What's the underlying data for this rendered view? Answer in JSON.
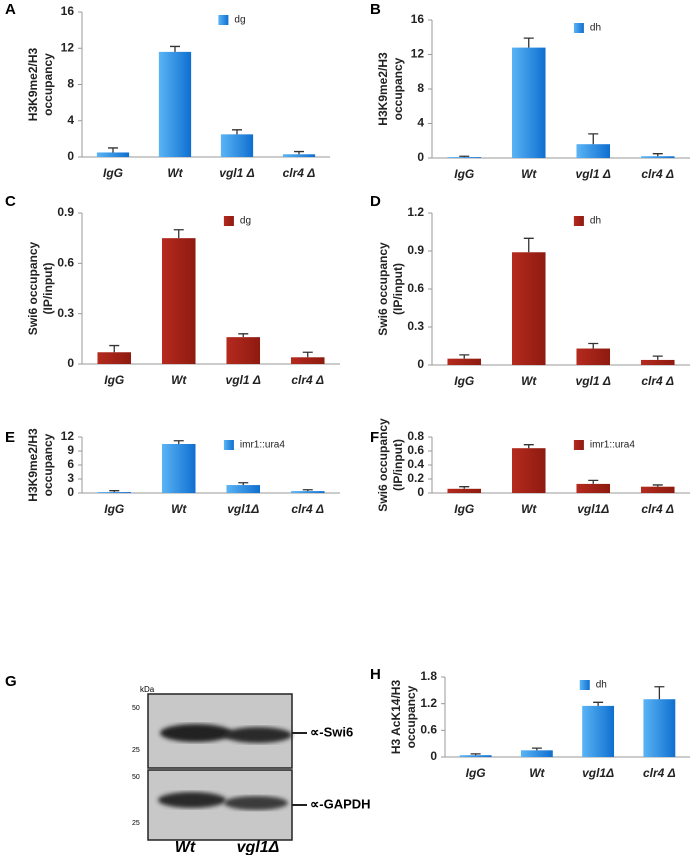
{
  "chart_data": [
    {
      "type": "bar",
      "label": "A",
      "ylabel": [
        "H3K9me2/H3",
        "occupancy"
      ],
      "categories": [
        "IgG",
        "Wt",
        "vgl1 Δ",
        "clr4 Δ"
      ],
      "values": [
        0.5,
        11.6,
        2.5,
        0.3
      ],
      "errors": [
        0.5,
        0.6,
        0.5,
        0.3
      ],
      "legend": "dg",
      "color": "#1e88e5",
      "ylim": [
        0,
        16
      ],
      "yticks": [
        0,
        4,
        8,
        12,
        16
      ]
    },
    {
      "type": "bar",
      "label": "B",
      "ylabel": [
        "H3K9me2/H3",
        "occupancy"
      ],
      "categories": [
        "IgG",
        "Wt",
        "vgl1 Δ",
        "clr4 Δ"
      ],
      "values": [
        0.1,
        12.8,
        1.6,
        0.2
      ],
      "errors": [
        0.1,
        1.1,
        1.2,
        0.3
      ],
      "legend": "dh",
      "color": "#1e88e5",
      "ylim": [
        0,
        16
      ],
      "yticks": [
        0,
        4,
        8,
        12,
        16
      ]
    },
    {
      "type": "bar",
      "label": "C",
      "ylabel": [
        "Swi6 occupancy",
        "(IP/input)"
      ],
      "categories": [
        "IgG",
        "Wt",
        "vgl1 Δ",
        "clr4 Δ"
      ],
      "values": [
        0.07,
        0.75,
        0.16,
        0.04
      ],
      "errors": [
        0.04,
        0.05,
        0.02,
        0.03
      ],
      "legend": "dg",
      "color": "#a52117",
      "ylim": [
        0,
        0.9
      ],
      "yticks": [
        0,
        0.3,
        0.6,
        0.9
      ]
    },
    {
      "type": "bar",
      "label": "D",
      "ylabel": [
        "Swi6 occupancy",
        "(IP/input)"
      ],
      "categories": [
        "IgG",
        "Wt",
        "vgl1 Δ",
        "clr4 Δ"
      ],
      "values": [
        0.05,
        0.89,
        0.13,
        0.04
      ],
      "errors": [
        0.03,
        0.11,
        0.04,
        0.03
      ],
      "legend": "dh",
      "color": "#a52117",
      "ylim": [
        0,
        1.2
      ],
      "yticks": [
        0,
        0.3,
        0.6,
        0.9,
        1.2
      ]
    },
    {
      "type": "bar",
      "label": "E",
      "ylabel": [
        "H3K9me2/H3",
        "occupancy"
      ],
      "categories": [
        "IgG",
        "Wt",
        "vgl1Δ",
        "clr4 Δ"
      ],
      "values": [
        0.2,
        10.5,
        1.7,
        0.4
      ],
      "errors": [
        0.3,
        0.7,
        0.5,
        0.3
      ],
      "legend": "imr1::ura4",
      "color": "#1e88e5",
      "ylim": [
        0,
        12
      ],
      "yticks": [
        0,
        3,
        6,
        9,
        12
      ]
    },
    {
      "type": "bar",
      "label": "F",
      "ylabel": [
        "Swi6 occupancy",
        "(IP/input)"
      ],
      "categories": [
        "IgG",
        "Wt",
        "vgl1Δ",
        "clr4 Δ"
      ],
      "values": [
        0.06,
        0.64,
        0.13,
        0.09
      ],
      "errors": [
        0.03,
        0.05,
        0.05,
        0.025
      ],
      "legend": "imr1::ura4",
      "color": "#a52117",
      "ylim": [
        0,
        0.8
      ],
      "yticks": [
        0,
        0.2,
        0.4,
        0.6,
        0.8
      ]
    },
    {
      "type": "bar",
      "label": "H",
      "ylabel": [
        "H3 AcK14/H3",
        "occupancy"
      ],
      "categories": [
        "IgG",
        "Wt",
        "vgl1Δ",
        "clr4 Δ"
      ],
      "values": [
        0.04,
        0.15,
        1.15,
        1.3
      ],
      "errors": [
        0.03,
        0.05,
        0.08,
        0.28
      ],
      "legend": "dh",
      "color": "#1e88e5",
      "ylim": [
        0,
        1.8
      ],
      "yticks": [
        0,
        0.6,
        1.2,
        1.8
      ]
    }
  ],
  "blot": {
    "label": "G",
    "unit": "kDa",
    "markers_top": [
      "50",
      "25"
    ],
    "markers_bottom": [
      "50",
      "25"
    ],
    "rows": [
      "∝-Swi6",
      "∝-GAPDH"
    ],
    "lanes": [
      "Wt",
      "vgl1Δ"
    ]
  }
}
